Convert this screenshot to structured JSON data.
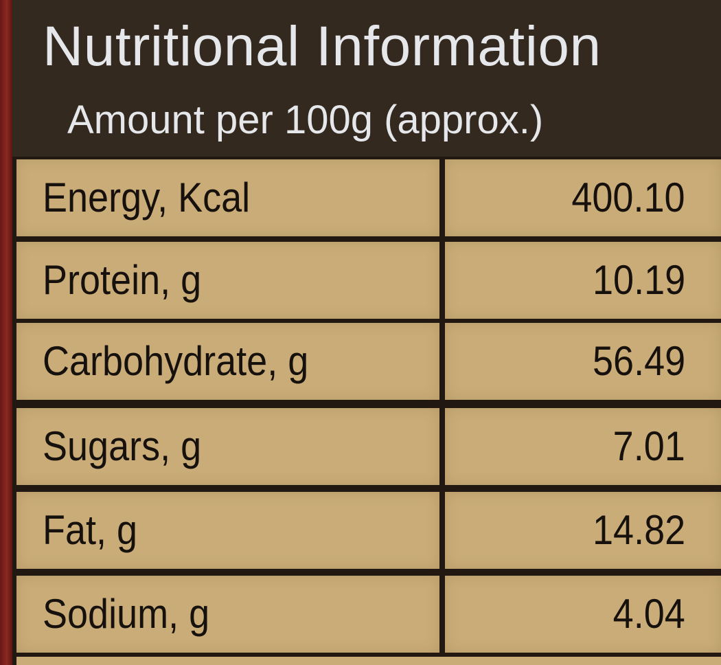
{
  "panel": {
    "title": "Nutritional Information",
    "subtitle": "Amount per 100g (approx.)"
  },
  "table": {
    "rows": [
      {
        "label": "Energy, Kcal",
        "value": "400.10"
      },
      {
        "label": "Protein, g",
        "value": "10.19"
      },
      {
        "label": "Carbohydrate, g",
        "value": "56.49"
      },
      {
        "label": "Sugars, g",
        "value": "7.01"
      },
      {
        "label": "Fat, g",
        "value": "14.82"
      },
      {
        "label": "Sodium, g",
        "value": "4.04"
      }
    ]
  },
  "colors": {
    "header_background": "#33291f",
    "header_text": "#e6e7ea",
    "cell_background": "#c9ac78",
    "cell_text": "#16110d",
    "border": "#201811",
    "edge_red": "#7a2019"
  }
}
